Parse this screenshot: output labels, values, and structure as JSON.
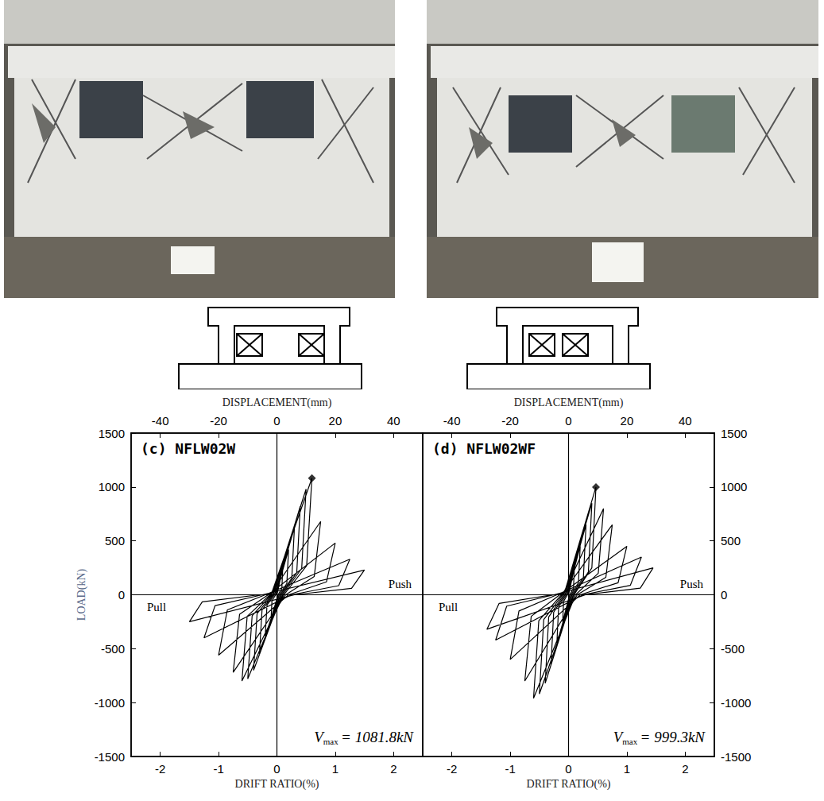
{
  "chart_data": [
    {
      "type": "line",
      "title": "(c) NFLW02W",
      "xlabel": "DRIFT RATIO(%)",
      "x2label": "DISPLACEMENT(mm)",
      "ylabel": "LOAD(kN)",
      "xlim": [
        -2.5,
        2.5
      ],
      "xticks": [
        -2,
        -1,
        0,
        1,
        2
      ],
      "x2lim": [
        -50,
        50
      ],
      "x2ticks": [
        -40,
        -20,
        0,
        20,
        40
      ],
      "ylim": [
        -1500,
        1500
      ],
      "yticks": [
        -1500,
        -1000,
        -500,
        0,
        500,
        1000,
        1500
      ],
      "annotations": [
        {
          "text": "Push",
          "side": "right"
        },
        {
          "text": "Pull",
          "side": "left"
        }
      ],
      "vmax": {
        "symbol": "V",
        "subscript": "max",
        "text": "= 1081.8kN"
      },
      "series": [
        {
          "type": "line",
          "color": "#000000",
          "x": [
            0,
            0.1,
            0.085,
            0.02,
            -0.1,
            -0.085,
            -0.02,
            0.2,
            0.17,
            0.04,
            -0.2,
            -0.17,
            -0.04,
            0.3,
            0.255,
            0.06,
            -0.3,
            -0.255,
            -0.06,
            0.4,
            0.34,
            0.08,
            -0.4,
            -0.34,
            -0.08,
            0.5,
            0.425,
            0.1,
            -0.5,
            -0.425,
            -0.1,
            0.6,
            0.51,
            0.12,
            -0.6,
            -0.51,
            -0.12,
            0.75,
            0.64,
            0.15,
            -0.75,
            -0.64,
            -0.15,
            1.0,
            0.85,
            0.2,
            -1.0,
            -0.85,
            -0.2,
            1.25,
            1.06,
            0.25,
            -1.25,
            -1.06,
            -0.25,
            1.5,
            1.28,
            0.3,
            -1.5,
            -1.28,
            -0.3
          ],
          "values": [
            0,
            250,
            60,
            0,
            -220,
            -55,
            0,
            420,
            105,
            0,
            -380,
            -95,
            0,
            620,
            155,
            0,
            -550,
            -140,
            0,
            820,
            205,
            0,
            -700,
            -175,
            0,
            980,
            245,
            0,
            -780,
            -195,
            0,
            1081.8,
            270,
            0,
            -800,
            -200,
            0,
            680,
            170,
            0,
            -720,
            -180,
            0,
            480,
            120,
            0,
            -560,
            -140,
            0,
            330,
            85,
            0,
            -400,
            -100,
            0,
            230,
            60,
            0,
            -250,
            -65,
            0
          ]
        },
        {
          "type": "scatter",
          "marker": "diamond",
          "color": "#000000",
          "x": [
            0.6
          ],
          "values": [
            1081.8
          ]
        }
      ]
    },
    {
      "type": "line",
      "title": "(d) NFLW02WF",
      "xlabel": "DRIFT RATIO(%)",
      "x2label": "DISPLACEMENT(mm)",
      "xlim": [
        -2.5,
        2.5
      ],
      "xticks": [
        -2,
        -1,
        0,
        1,
        2
      ],
      "x2lim": [
        -50,
        50
      ],
      "x2ticks": [
        -40,
        -20,
        0,
        20,
        40
      ],
      "ylim": [
        -1500,
        1500
      ],
      "yticks": [
        -1500,
        -1000,
        -500,
        0,
        500,
        1000,
        1500
      ],
      "annotations": [
        {
          "text": "Push",
          "side": "right"
        },
        {
          "text": "Pull",
          "side": "left"
        }
      ],
      "vmax": {
        "symbol": "V",
        "subscript": "max",
        "text": "= 999.3kN"
      },
      "series": [
        {
          "type": "line",
          "color": "#000000",
          "x": [
            0,
            0.1,
            0.085,
            0.02,
            -0.1,
            -0.085,
            -0.02,
            0.2,
            0.17,
            0.04,
            -0.2,
            -0.17,
            -0.04,
            0.3,
            0.255,
            0.06,
            -0.3,
            -0.255,
            -0.06,
            0.4,
            0.34,
            0.08,
            -0.4,
            -0.34,
            -0.08,
            0.47,
            0.4,
            0.094,
            -0.5,
            -0.425,
            -0.1,
            0.6,
            0.51,
            0.12,
            -0.6,
            -0.51,
            -0.12,
            0.75,
            0.64,
            0.15,
            -0.75,
            -0.64,
            -0.15,
            1.0,
            0.85,
            0.2,
            -1.0,
            -0.85,
            -0.2,
            1.25,
            1.06,
            0.25,
            -1.25,
            -1.06,
            -0.25,
            1.45,
            1.23,
            0.29,
            -1.4,
            -1.19,
            -0.28
          ],
          "values": [
            0,
            250,
            62,
            0,
            -250,
            -62,
            0,
            450,
            112,
            0,
            -450,
            -112,
            0,
            650,
            162,
            0,
            -650,
            -162,
            0,
            850,
            212,
            0,
            -820,
            -205,
            0,
            999.3,
            250,
            0,
            -920,
            -230,
            0,
            800,
            200,
            0,
            -960,
            -240,
            0,
            650,
            162,
            0,
            -800,
            -200,
            0,
            450,
            112,
            0,
            -600,
            -150,
            0,
            350,
            88,
            0,
            -420,
            -105,
            0,
            250,
            62,
            0,
            -320,
            -80,
            0
          ]
        },
        {
          "type": "scatter",
          "marker": "diamond",
          "color": "#000000",
          "x": [
            0.47
          ],
          "values": [
            999.3
          ]
        }
      ]
    }
  ]
}
